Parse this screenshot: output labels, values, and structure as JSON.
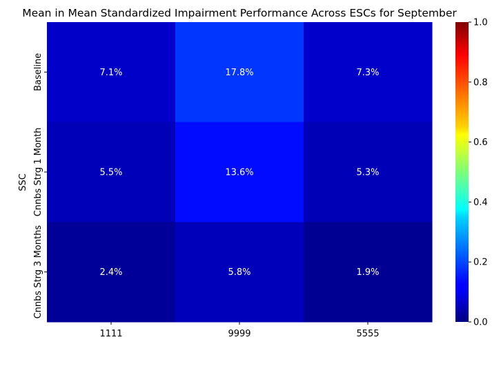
{
  "chart_data": {
    "type": "heatmap",
    "title": "Mean in Mean Standardized Impairment Performance Across ESCs for September",
    "xlabel": "",
    "ylabel": "SSC",
    "x_categories": [
      "1111",
      "9999",
      "5555"
    ],
    "y_categories": [
      "Baseline",
      "Cnnbs Strg 1 Month",
      "Cnnbs Strg 3 Months"
    ],
    "values": [
      [
        0.071,
        0.178,
        0.073
      ],
      [
        0.055,
        0.136,
        0.053
      ],
      [
        0.024,
        0.058,
        0.019
      ]
    ],
    "cell_labels": [
      [
        "7.1%",
        "17.8%",
        "7.3%"
      ],
      [
        "5.5%",
        "13.6%",
        "5.3%"
      ],
      [
        "2.4%",
        "5.8%",
        "1.9%"
      ]
    ],
    "colormap": "jet",
    "color_range": [
      0,
      1
    ],
    "colorbar_ticks": [
      "0.0",
      "0.2",
      "0.4",
      "0.6",
      "0.8",
      "1.0"
    ],
    "colorbar_tick_values": [
      0,
      0.2,
      0.4,
      0.6,
      0.8,
      1.0
    ],
    "annotation_color": "#ffffff"
  }
}
